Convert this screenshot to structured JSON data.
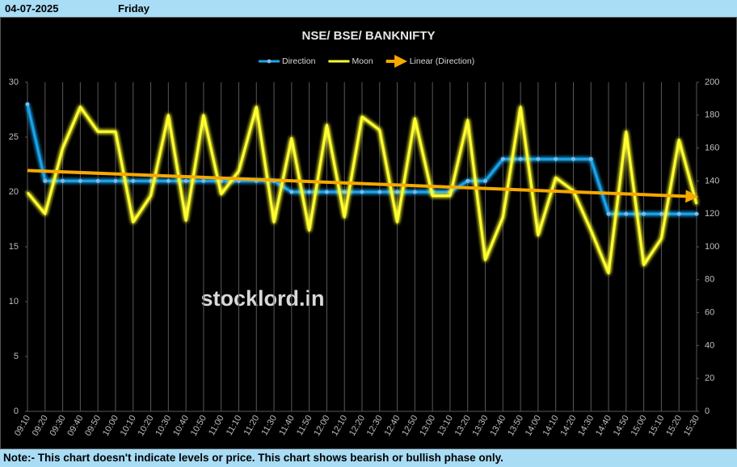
{
  "header": {
    "date": "04-07-2025",
    "day": "Friday"
  },
  "watermark": "stocklord.in",
  "note": "Note:- This chart doesn't indicate levels or price. This chart shows bearish or bullish phase only.",
  "chart_data": {
    "type": "line",
    "title": "NSE/ BSE/ BANKNIFTY",
    "categories": [
      "09:10",
      "09:20",
      "09:30",
      "09:40",
      "09:50",
      "10:00",
      "10:10",
      "10:20",
      "10:30",
      "10:40",
      "10:50",
      "11:00",
      "11:10",
      "11:20",
      "11:30",
      "11:40",
      "11:50",
      "12:00",
      "12:10",
      "12:20",
      "12:30",
      "12:40",
      "12:50",
      "13:00",
      "13:10",
      "13:20",
      "13:30",
      "13:40",
      "13:50",
      "14:00",
      "14:10",
      "14:20",
      "14:30",
      "14:40",
      "14:50",
      "15:00",
      "15:10",
      "15:20",
      "15:30"
    ],
    "series": [
      {
        "name": "Direction",
        "color": "#1fa3ea",
        "axis": "y",
        "markers": true,
        "values": [
          28,
          21,
          21,
          21,
          21,
          21,
          21,
          21,
          21,
          21,
          21,
          21,
          21,
          21,
          21,
          20,
          20,
          20,
          20,
          20,
          20,
          20,
          20,
          20,
          20,
          21,
          21,
          23,
          23,
          23,
          23,
          23,
          23,
          18,
          18,
          18,
          18,
          18,
          18
        ]
      },
      {
        "name": "Moon",
        "color": "#ffff33",
        "axis": "y2",
        "markers": false,
        "values": [
          133,
          120,
          160,
          185,
          170,
          170,
          115,
          131,
          180,
          116,
          180,
          132,
          146,
          185,
          115,
          166,
          110,
          174,
          118,
          179,
          171,
          115,
          178,
          131,
          131,
          177,
          92,
          118,
          185,
          107,
          142,
          134,
          110,
          84,
          170,
          89,
          105,
          165,
          126
        ]
      }
    ],
    "trendline": {
      "name": "Linear (Direction)",
      "color": "#f7a900"
    },
    "ylim": [
      0,
      30
    ],
    "yticks": [
      0,
      5,
      10,
      15,
      20,
      25,
      30
    ],
    "y2lim": [
      0,
      200
    ],
    "y2ticks": [
      0,
      20,
      40,
      60,
      80,
      100,
      120,
      140,
      160,
      180,
      200
    ],
    "grid": true
  }
}
